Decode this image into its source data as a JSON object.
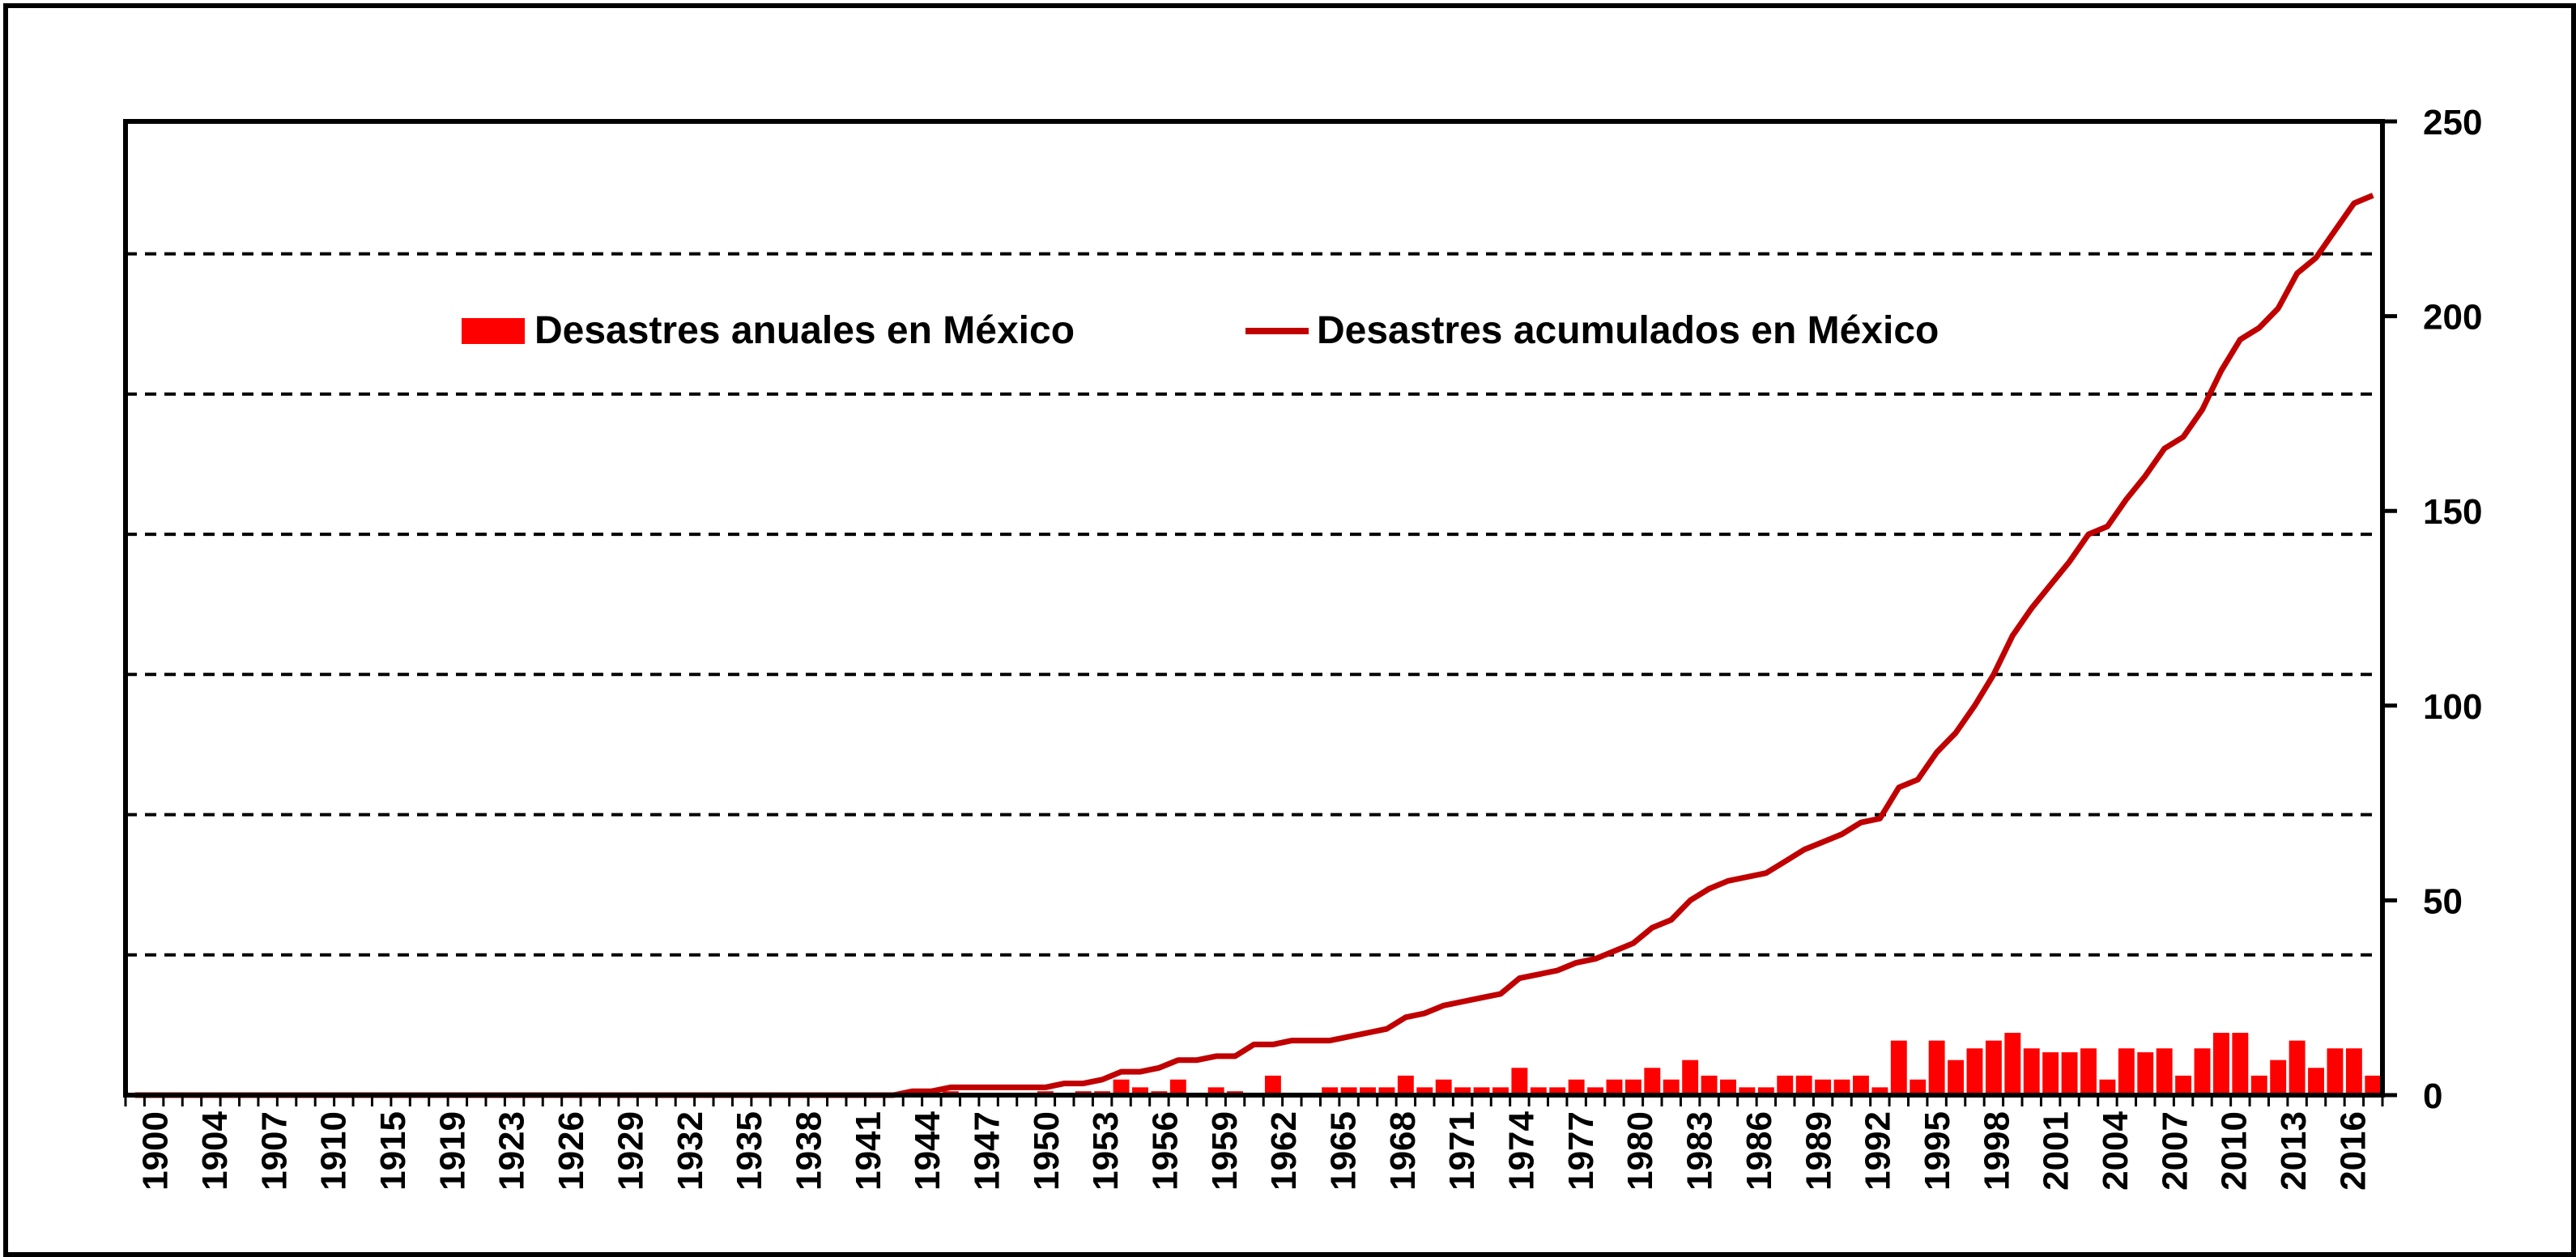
{
  "chart_data": {
    "type": "bar+line",
    "title": "",
    "xlabel": "",
    "ylabel": "",
    "ylim": [
      0,
      250
    ],
    "ytick_step": 50,
    "y_gridlines": [
      36,
      72,
      108,
      144,
      180,
      216
    ],
    "grid_style": "dashed",
    "legend_placement": "top-left",
    "colors": {
      "bars": "#ff0000",
      "line": "#c00000",
      "axis": "#000000",
      "grid": "#000000"
    },
    "x_start": 1900,
    "x_end": 2018,
    "x_tick_labels": [
      "1900",
      "1904",
      "1907",
      "1910",
      "1915",
      "1919",
      "1923",
      "1926",
      "1929",
      "1932",
      "1935",
      "1938",
      "1941",
      "1944",
      "1947",
      "1950",
      "1953",
      "1956",
      "1959",
      "1962",
      "1965",
      "1968",
      "1971",
      "1974",
      "1977",
      "1980",
      "1983",
      "1986",
      "1989",
      "1992",
      "1995",
      "1998",
      "2001",
      "2004",
      "2007",
      "2010",
      "2013",
      "2016"
    ],
    "series": [
      {
        "name": "Desastres anuales en México",
        "type": "bar",
        "x": [
          1941,
          1943,
          1948,
          1950,
          1951,
          1952,
          1953,
          1954,
          1955,
          1957,
          1958,
          1960,
          1963,
          1964,
          1965,
          1966,
          1967,
          1968,
          1969,
          1970,
          1971,
          1972,
          1973,
          1974,
          1975,
          1976,
          1977,
          1978,
          1979,
          1980,
          1981,
          1982,
          1983,
          1984,
          1985,
          1986,
          1987,
          1988,
          1989,
          1990,
          1991,
          1992,
          1993,
          1994,
          1995,
          1996,
          1997,
          1998,
          1999,
          2000,
          2001,
          2002,
          2003,
          2004,
          2005,
          2006,
          2007,
          2008,
          2009,
          2010,
          2011,
          2012,
          2013,
          2014,
          2015,
          2016,
          2017,
          2018
        ],
        "values": [
          1,
          1,
          1,
          1,
          1,
          4,
          2,
          1,
          4,
          2,
          1,
          5,
          2,
          2,
          2,
          2,
          5,
          2,
          4,
          2,
          2,
          2,
          7,
          2,
          2,
          4,
          2,
          4,
          4,
          7,
          4,
          9,
          5,
          4,
          2,
          2,
          5,
          5,
          4,
          4,
          5,
          2,
          14,
          4,
          14,
          9,
          12,
          14,
          16,
          12,
          11,
          11,
          12,
          4,
          12,
          11,
          12,
          5,
          12,
          16,
          16,
          5,
          9,
          14,
          7,
          12,
          12,
          5
        ]
      },
      {
        "name": "Desastres acumulados en México",
        "type": "line",
        "x": [
          1900,
          1940,
          1941,
          1942,
          1943,
          1944,
          1945,
          1946,
          1947,
          1948,
          1949,
          1950,
          1951,
          1952,
          1953,
          1954,
          1955,
          1956,
          1957,
          1958,
          1959,
          1960,
          1961,
          1962,
          1963,
          1964,
          1965,
          1966,
          1967,
          1968,
          1969,
          1970,
          1971,
          1972,
          1973,
          1974,
          1975,
          1976,
          1977,
          1978,
          1979,
          1980,
          1981,
          1982,
          1983,
          1984,
          1985,
          1986,
          1987,
          1988,
          1989,
          1990,
          1991,
          1992,
          1993,
          1994,
          1995,
          1996,
          1997,
          1998,
          1999,
          2000,
          2001,
          2002,
          2003,
          2004,
          2005,
          2006,
          2007,
          2008,
          2009,
          2010,
          2011,
          2012,
          2013,
          2014,
          2015,
          2016,
          2017,
          2018
        ],
        "values": [
          0,
          0,
          1,
          1,
          2,
          2,
          2,
          2,
          2,
          2,
          3,
          3,
          4,
          6,
          6,
          7,
          9,
          9,
          10,
          10,
          13,
          13,
          14,
          14,
          14,
          15,
          16,
          17,
          20,
          21,
          23,
          24,
          25,
          26,
          30,
          31,
          32,
          34,
          35,
          37,
          39,
          43,
          45,
          50,
          53,
          55,
          56,
          57,
          60,
          63,
          65,
          67,
          70,
          71,
          79,
          81,
          88,
          93,
          100,
          108,
          118,
          125,
          131,
          137,
          144,
          146,
          153,
          159,
          166,
          169,
          176,
          186,
          194,
          197,
          202,
          211,
          215,
          222,
          229,
          231
        ]
      }
    ]
  }
}
